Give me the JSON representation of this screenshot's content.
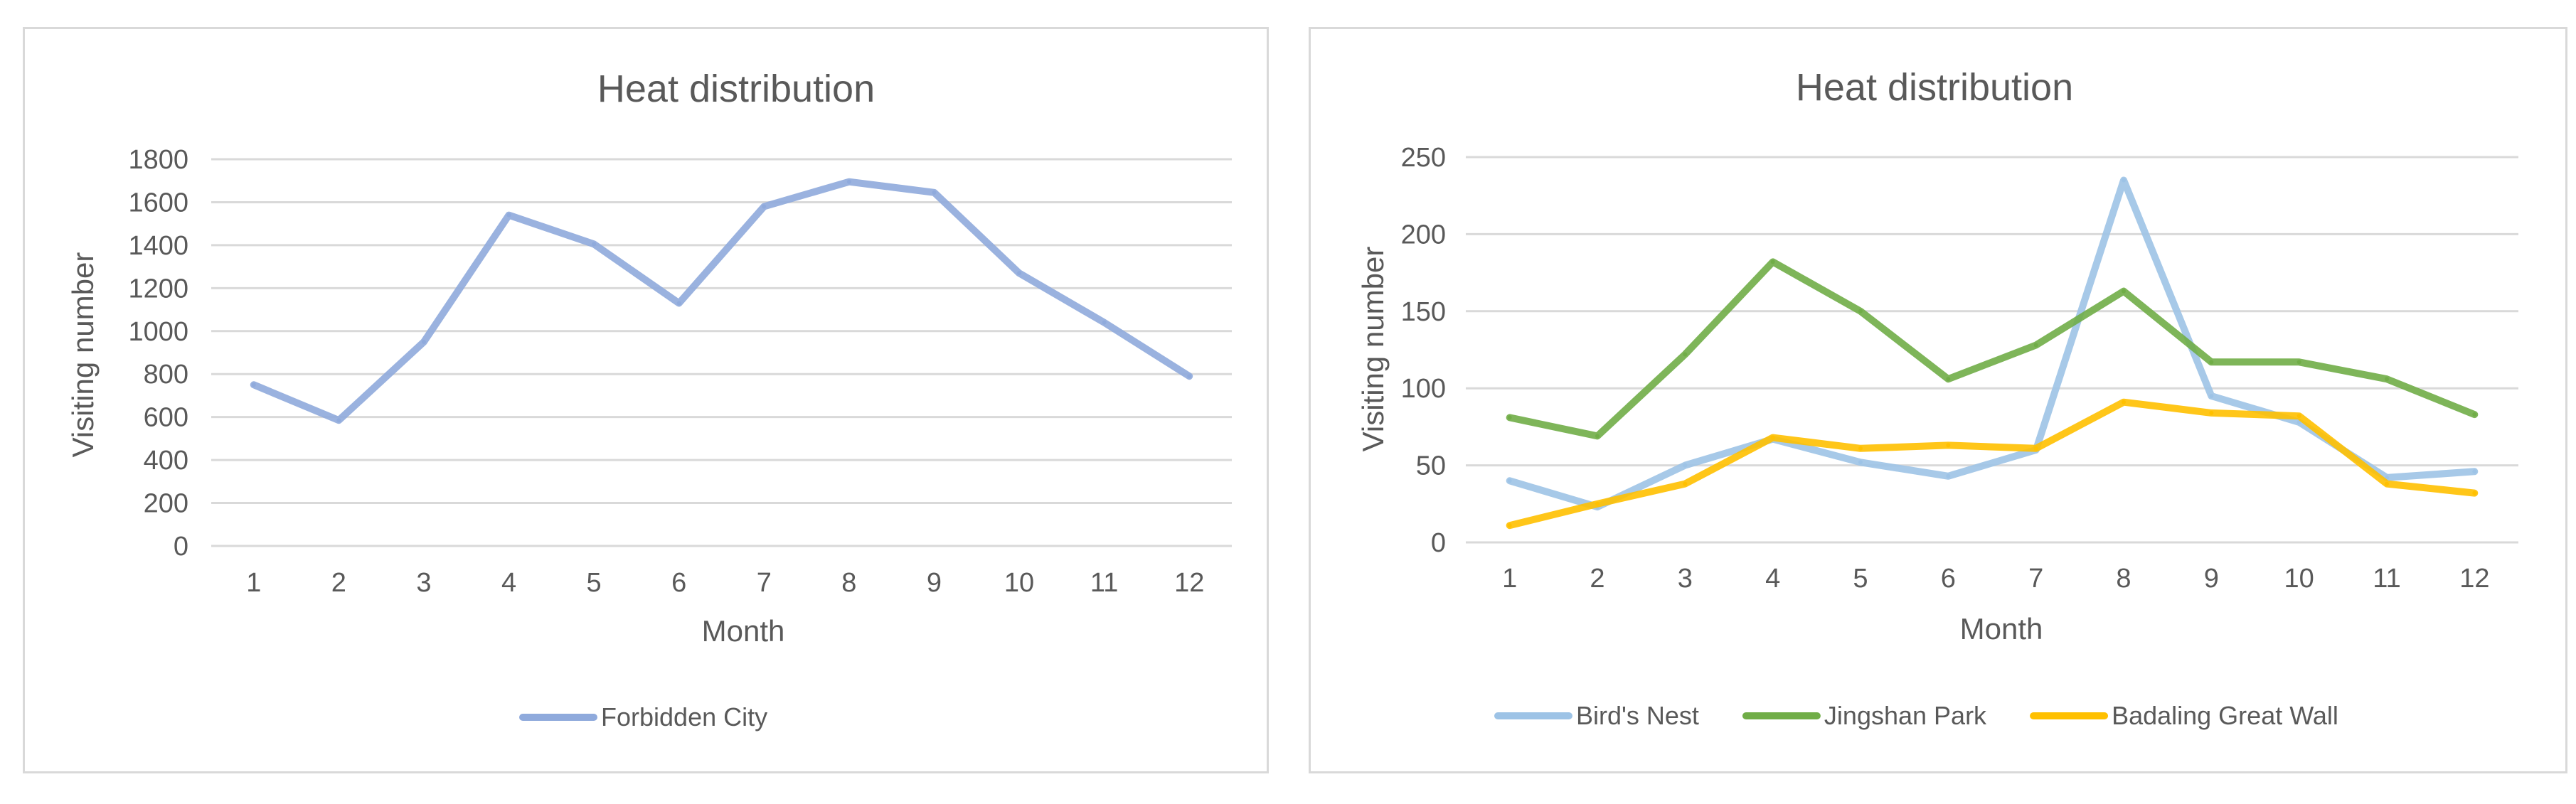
{
  "chart_data": [
    {
      "type": "line",
      "title": "Heat distribution",
      "xlabel": "Month",
      "ylabel": "Visiting number",
      "categories": [
        "1",
        "2",
        "3",
        "4",
        "5",
        "6",
        "7",
        "8",
        "9",
        "10",
        "11",
        "12"
      ],
      "ylim": [
        0,
        1800
      ],
      "yticks": [
        "0",
        "200",
        "400",
        "600",
        "800",
        "1000",
        "1200",
        "1400",
        "1600",
        "1800"
      ],
      "grid": true,
      "legend_position": "bottom",
      "series": [
        {
          "name": "Forbidden City",
          "color": "#8faadc",
          "values": [
            750,
            585,
            950,
            1540,
            1405,
            1130,
            1580,
            1695,
            1645,
            1270,
            1040,
            790
          ]
        }
      ]
    },
    {
      "type": "line",
      "title": "Heat distribution",
      "xlabel": "Month",
      "ylabel": "Visiting number",
      "categories": [
        "1",
        "2",
        "3",
        "4",
        "5",
        "6",
        "7",
        "8",
        "9",
        "10",
        "11",
        "12"
      ],
      "ylim": [
        0,
        250
      ],
      "yticks": [
        "0",
        "50",
        "100",
        "150",
        "200",
        "250"
      ],
      "grid": true,
      "legend_position": "bottom",
      "series": [
        {
          "name": "Bird's Nest",
          "color": "#9dc3e6",
          "values": [
            40,
            23,
            50,
            67,
            52,
            43,
            60,
            235,
            95,
            78,
            42,
            46
          ]
        },
        {
          "name": "Jingshan Park",
          "color": "#70ad47",
          "values": [
            81,
            69,
            122,
            182,
            150,
            106,
            128,
            163,
            117,
            117,
            106,
            83
          ]
        },
        {
          "name": "Badaling Great Wall",
          "color": "#ffc000",
          "values": [
            11,
            25,
            38,
            68,
            61,
            63,
            61,
            91,
            84,
            82,
            38,
            32
          ]
        }
      ]
    }
  ]
}
